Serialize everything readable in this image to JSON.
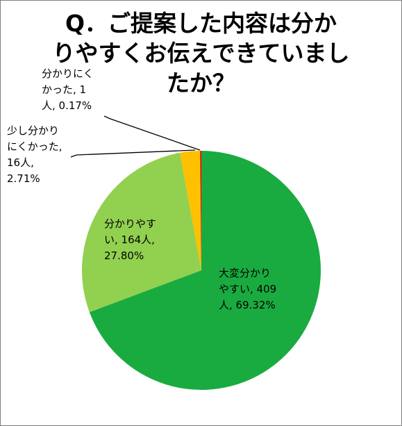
{
  "chart_data": {
    "type": "pie",
    "title_lines": [
      "Q．ご提案した内容は分か",
      "りやすくお伝えできていまし",
      "たか？"
    ],
    "slices": [
      {
        "category": "大変分かりやすい",
        "count": 409,
        "unit": "人",
        "percent": 69.32,
        "color": "#1aab40",
        "label_lines": [
          "大変分かり",
          "やすい, 409",
          "人, 69.32%"
        ]
      },
      {
        "category": "分かりやすい",
        "count": 164,
        "unit": "人",
        "percent": 27.8,
        "color": "#92d050",
        "label_lines": [
          "分かりやす",
          "い, 164人,",
          "27.80%"
        ]
      },
      {
        "category": "少し分かりにくかった",
        "count": 16,
        "unit": "人",
        "percent": 2.71,
        "color": "#ffc000",
        "label_lines": [
          "少し分かり",
          "にくかった,",
          "16人,",
          "2.71%"
        ]
      },
      {
        "category": "分かりにくかった",
        "count": 1,
        "unit": "人",
        "percent": 0.17,
        "color": "#ff0000",
        "label_lines": [
          "分かりにく",
          "かった, 1",
          "人, 0.17%"
        ]
      }
    ],
    "start_angle": "12 o'clock",
    "direction": "clockwise",
    "legend": "none",
    "leader_lines": true
  }
}
